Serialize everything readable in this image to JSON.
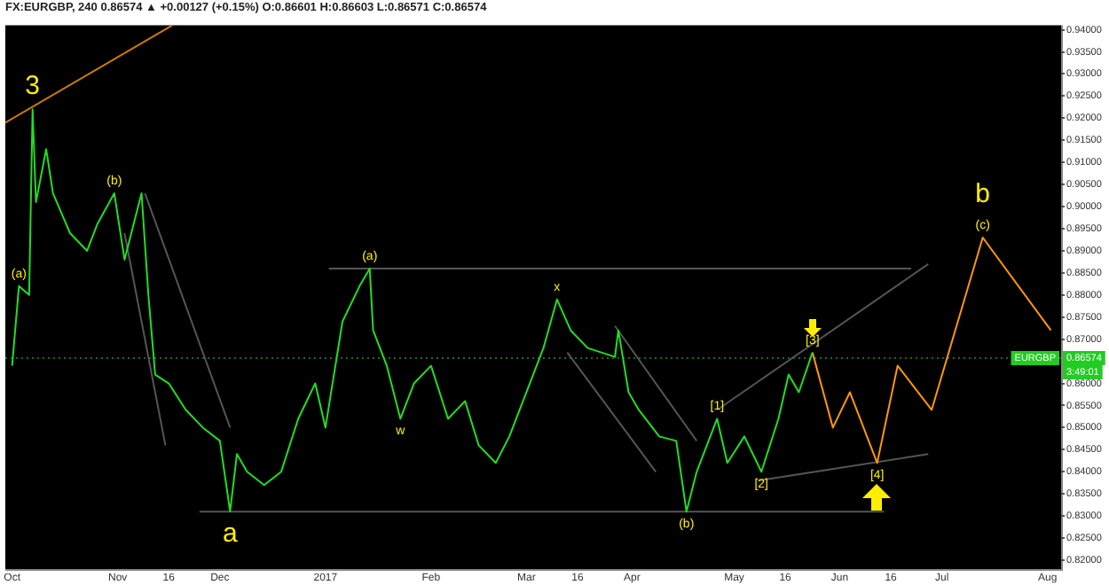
{
  "chart_data": {
    "type": "line",
    "title": "FX:EURGBP, 240 0.86574 ▲ +0.00127 (+0.15%) O:0.86601 H:0.86603 L:0.86571 C:0.86574",
    "series": [
      {
        "color": "#22dd22",
        "x": [
          "2016-10-01",
          "2016-10-03",
          "2016-10-06",
          "2016-10-07",
          "2016-10-08",
          "2016-10-11",
          "2016-10-13",
          "2016-10-18",
          "2016-10-23",
          "2016-10-26",
          "2016-10-31",
          "2016-11-03",
          "2016-11-08",
          "2016-11-10",
          "2016-11-12",
          "2016-11-16",
          "2016-11-21",
          "2016-11-26",
          "2016-12-01",
          "2016-12-04",
          "2016-12-06",
          "2016-12-09",
          "2016-12-14",
          "2016-12-19",
          "2016-12-24",
          "2016-12-29",
          "2017-01-01",
          "2017-01-06",
          "2017-01-11",
          "2017-01-14",
          "2017-01-15",
          "2017-01-19",
          "2017-01-23",
          "2017-01-27",
          "2017-02-01",
          "2017-02-06",
          "2017-02-11",
          "2017-02-15",
          "2017-02-20",
          "2017-02-24",
          "2017-03-01",
          "2017-03-06",
          "2017-03-10",
          "2017-03-14",
          "2017-03-19",
          "2017-03-27",
          "2017-03-28",
          "2017-03-31",
          "2017-04-03",
          "2017-04-09",
          "2017-04-14",
          "2017-04-17",
          "2017-04-20",
          "2017-04-24",
          "2017-04-26",
          "2017-04-29",
          "2017-05-04",
          "2017-05-09",
          "2017-05-14",
          "2017-05-17",
          "2017-05-20",
          "2017-05-24"
        ],
        "values": [
          0.864,
          0.882,
          0.88,
          0.922,
          0.901,
          0.913,
          0.903,
          0.894,
          0.89,
          0.896,
          0.903,
          0.888,
          0.903,
          0.88,
          0.862,
          0.86,
          0.854,
          0.85,
          0.847,
          0.831,
          0.844,
          0.84,
          0.837,
          0.84,
          0.852,
          0.86,
          0.85,
          0.874,
          0.882,
          0.886,
          0.872,
          0.864,
          0.852,
          0.86,
          0.864,
          0.852,
          0.856,
          0.846,
          0.842,
          0.848,
          0.858,
          0.868,
          0.879,
          0.872,
          0.868,
          0.866,
          0.872,
          0.858,
          0.854,
          0.848,
          0.847,
          0.831,
          0.84,
          0.848,
          0.852,
          0.842,
          0.848,
          0.84,
          0.852,
          0.862,
          0.858,
          0.867
        ]
      },
      {
        "color": "#ff9900",
        "x": [
          "2017-05-24",
          "2017-05-30",
          "2017-06-04",
          "2017-06-12",
          "2017-06-18",
          "2017-06-28",
          "2017-07-13",
          "2017-08-02"
        ],
        "values": [
          0.867,
          0.85,
          0.858,
          0.842,
          0.864,
          0.854,
          0.893,
          0.872
        ]
      },
      {
        "color": "#cc7a00",
        "x": [
          "2016-09-29",
          "2016-11-17"
        ],
        "values": [
          0.919,
          0.941
        ]
      },
      {
        "color": "#555555",
        "x": [
          "2017-01-02",
          "2017-06-22"
        ],
        "values": [
          0.886,
          0.886
        ]
      },
      {
        "color": "#555555",
        "x": [
          "2016-11-25",
          "2017-06-14"
        ],
        "values": [
          0.831,
          0.831
        ]
      },
      {
        "color": "#555555",
        "x": [
          "2016-11-03",
          "2016-11-15"
        ],
        "values": [
          0.894,
          0.846
        ]
      },
      {
        "color": "#555555",
        "x": [
          "2016-11-09",
          "2016-12-04"
        ],
        "values": [
          0.903,
          0.85
        ]
      },
      {
        "color": "#555555",
        "x": [
          "2017-03-13",
          "2017-04-08"
        ],
        "values": [
          0.867,
          0.84
        ]
      },
      {
        "color": "#555555",
        "x": [
          "2017-03-27",
          "2017-04-20"
        ],
        "values": [
          0.873,
          0.847
        ]
      },
      {
        "color": "#555555",
        "x": [
          "2017-04-26",
          "2017-06-27"
        ],
        "values": [
          0.854,
          0.887
        ]
      },
      {
        "color": "#555555",
        "x": [
          "2017-05-08",
          "2017-06-27"
        ],
        "values": [
          0.838,
          0.844
        ]
      }
    ],
    "xlim": [
      "2016-09-29",
      "2017-08-05"
    ],
    "xticks": [
      {
        "value": "2016-10-01",
        "label": "Oct"
      },
      {
        "value": "2016-11-01",
        "label": "Nov"
      },
      {
        "value": "2016-11-16",
        "label": "16"
      },
      {
        "value": "2016-12-01",
        "label": "Dec"
      },
      {
        "value": "2017-01-01",
        "label": "2017"
      },
      {
        "value": "2017-02-01",
        "label": "Feb"
      },
      {
        "value": "2017-03-01",
        "label": "Mar"
      },
      {
        "value": "2017-03-16",
        "label": "16"
      },
      {
        "value": "2017-04-01",
        "label": "Apr"
      },
      {
        "value": "2017-05-01",
        "label": "May"
      },
      {
        "value": "2017-05-16",
        "label": "16"
      },
      {
        "value": "2017-06-01",
        "label": "Jun"
      },
      {
        "value": "2017-06-16",
        "label": "16"
      },
      {
        "value": "2017-07-01",
        "label": "Jul"
      },
      {
        "value": "2017-08-01",
        "label": "Aug"
      }
    ],
    "ylim": [
      0.818,
      0.941
    ],
    "yticks": [
      {
        "value": 0.82,
        "label": "0.82000"
      },
      {
        "value": 0.825,
        "label": "0.82500"
      },
      {
        "value": 0.83,
        "label": "0.83000"
      },
      {
        "value": 0.835,
        "label": "0.83500"
      },
      {
        "value": 0.84,
        "label": "0.84000"
      },
      {
        "value": 0.845,
        "label": "0.84500"
      },
      {
        "value": 0.85,
        "label": "0.85000"
      },
      {
        "value": 0.855,
        "label": "0.85500"
      },
      {
        "value": 0.86,
        "label": "0.86000"
      },
      {
        "value": 0.87,
        "label": "0.87000"
      },
      {
        "value": 0.875,
        "label": "0.87500"
      },
      {
        "value": 0.88,
        "label": "0.88000"
      },
      {
        "value": 0.885,
        "label": "0.88500"
      },
      {
        "value": 0.89,
        "label": "0.89000"
      },
      {
        "value": 0.895,
        "label": "0.89500"
      },
      {
        "value": 0.9,
        "label": "0.90000"
      },
      {
        "value": 0.905,
        "label": "0.90500"
      },
      {
        "value": 0.91,
        "label": "0.91000"
      },
      {
        "value": 0.915,
        "label": "0.91500"
      },
      {
        "value": 0.92,
        "label": "0.92000"
      },
      {
        "value": 0.925,
        "label": "0.92500"
      },
      {
        "value": 0.93,
        "label": "0.93000"
      },
      {
        "value": 0.935,
        "label": "0.93500"
      },
      {
        "value": 0.94,
        "label": "0.94000"
      }
    ],
    "ref_lines": [
      {
        "axis": "y",
        "value": 0.86574,
        "label": "EURGBP",
        "color": "#1a6b1a",
        "line_style": "dotted"
      }
    ],
    "annotations": [
      {
        "text": "3",
        "x": "2016-10-07",
        "y": 0.922
      },
      {
        "text": "(a)",
        "x": "2016-10-03",
        "y": 0.882
      },
      {
        "text": "(b)",
        "x": "2016-10-31",
        "y": 0.903
      },
      {
        "text": "a",
        "x": "2016-12-04",
        "y": 0.831
      },
      {
        "text": "(a)",
        "x": "2017-01-14",
        "y": 0.886
      },
      {
        "text": "w",
        "x": "2017-01-23",
        "y": 0.852
      },
      {
        "text": "x",
        "x": "2017-03-10",
        "y": 0.879
      },
      {
        "text": "(b)",
        "x": "2017-04-17",
        "y": 0.831
      },
      {
        "text": "[1]",
        "x": "2017-04-26",
        "y": 0.852
      },
      {
        "text": "[2]",
        "x": "2017-05-09",
        "y": 0.84
      },
      {
        "text": "[3]",
        "x": "2017-05-24",
        "y": 0.867
      },
      {
        "text": "[4]",
        "x": "2017-06-12",
        "y": 0.842
      },
      {
        "text": "(c)",
        "x": "2017-07-13",
        "y": 0.893
      },
      {
        "text": "b",
        "x": "2017-07-13",
        "y": 0.893
      },
      "0.86574",
      "3:49:01"
    ],
    "grid": false,
    "legend": false,
    "marker": "none",
    "line_style": "solid"
  }
}
